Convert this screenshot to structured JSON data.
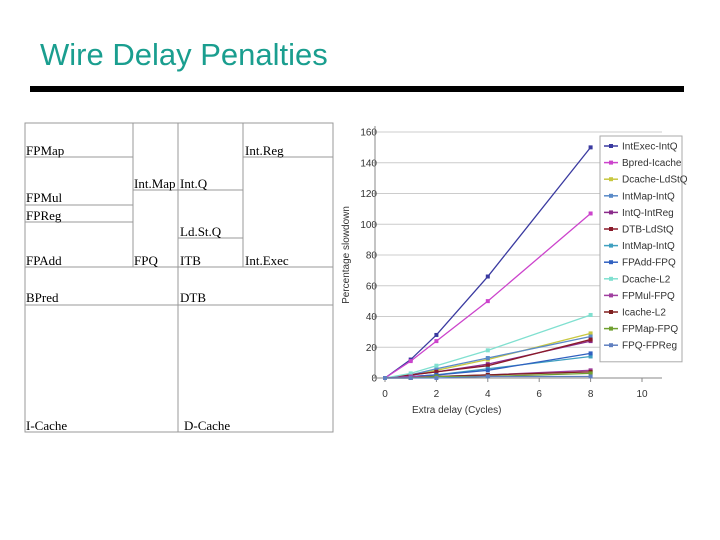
{
  "title": "Wire Delay Penalties",
  "floorplan": {
    "labels": [
      "FPMap",
      "Int.Reg",
      "Int.Map",
      "Int.Q",
      "FPMul",
      "FPReg",
      "Ld.St.Q",
      "FPAdd",
      "FPQ",
      "ITB",
      "Int.Exec",
      "BPred",
      "DTB",
      "I-Cache",
      "D-Cache"
    ]
  },
  "chart_data": {
    "type": "line",
    "x_label": "Extra delay (Cycles)",
    "y_label": "Percentage slowdown",
    "x": [
      0,
      1,
      2,
      4,
      8
    ],
    "xlim": [
      0,
      10
    ],
    "xticks": [
      0,
      2,
      4,
      6,
      8,
      10
    ],
    "ylim": [
      0,
      160
    ],
    "yticks": [
      0,
      20,
      40,
      60,
      80,
      100,
      120,
      140,
      160
    ],
    "grid": true,
    "legend": "upper right",
    "series": [
      {
        "name": "IntExec-IntQ",
        "color": "#3a3aa0",
        "values": [
          0,
          12,
          28,
          66,
          150
        ]
      },
      {
        "name": "Bpred-Icache",
        "color": "#cc44cc",
        "values": [
          0,
          11,
          24,
          50,
          107
        ]
      },
      {
        "name": "Dcache-LdStQ",
        "color": "#c8c840",
        "values": [
          0,
          2,
          5,
          12,
          29
        ]
      },
      {
        "name": "IntMap-IntQ",
        "color": "#5a8ac8",
        "values": [
          0,
          2,
          6,
          13,
          27
        ]
      },
      {
        "name": "IntQ-IntReg",
        "color": "#8a2a8a",
        "values": [
          0,
          2,
          4,
          9,
          24
        ]
      },
      {
        "name": "DTB-LdStQ",
        "color": "#8a1a2a",
        "values": [
          0,
          2,
          4,
          8,
          25
        ]
      },
      {
        "name": "IntMap-IntQ",
        "color": "#40a0c0",
        "values": [
          0,
          1,
          2,
          6,
          14
        ]
      },
      {
        "name": "FPAdd-FPQ",
        "color": "#3060c0",
        "values": [
          0,
          1,
          2,
          5,
          16
        ]
      },
      {
        "name": "Dcache-L2",
        "color": "#80e0d0",
        "values": [
          0,
          3,
          8,
          18,
          41
        ]
      },
      {
        "name": "FPMul-FPQ",
        "color": "#a040a0",
        "values": [
          0,
          1,
          1,
          2,
          5
        ]
      },
      {
        "name": "Icache-L2",
        "color": "#802020",
        "values": [
          0,
          0,
          1,
          2,
          4
        ]
      },
      {
        "name": "FPMap-FPQ",
        "color": "#70a030",
        "values": [
          0,
          0,
          1,
          1,
          3
        ]
      },
      {
        "name": "FPQ-FPReg",
        "color": "#6080c0",
        "values": [
          0,
          0,
          0,
          1,
          1
        ]
      }
    ]
  }
}
